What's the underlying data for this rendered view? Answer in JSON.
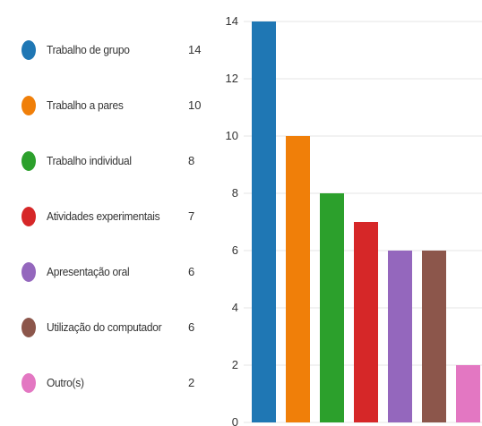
{
  "chart_data": {
    "type": "bar",
    "categories": [
      "Trabalho de grupo",
      "Trabalho a pares",
      "Trabalho individual",
      "Atividades experimentais",
      "Apresentação oral",
      "Utilização do computador",
      "Outro(s)"
    ],
    "values": [
      14,
      10,
      8,
      7,
      6,
      6,
      2
    ],
    "colors": [
      "#1f77b4",
      "#f07f09",
      "#2ca02c",
      "#d62728",
      "#9467bd",
      "#8c564b",
      "#e377c2"
    ],
    "yticks": [
      "0",
      "2",
      "4",
      "6",
      "8",
      "10",
      "12",
      "14"
    ],
    "ylim": [
      0,
      14
    ],
    "grid": true,
    "legend_position": "left",
    "title": "",
    "xlabel": "",
    "ylabel": ""
  }
}
